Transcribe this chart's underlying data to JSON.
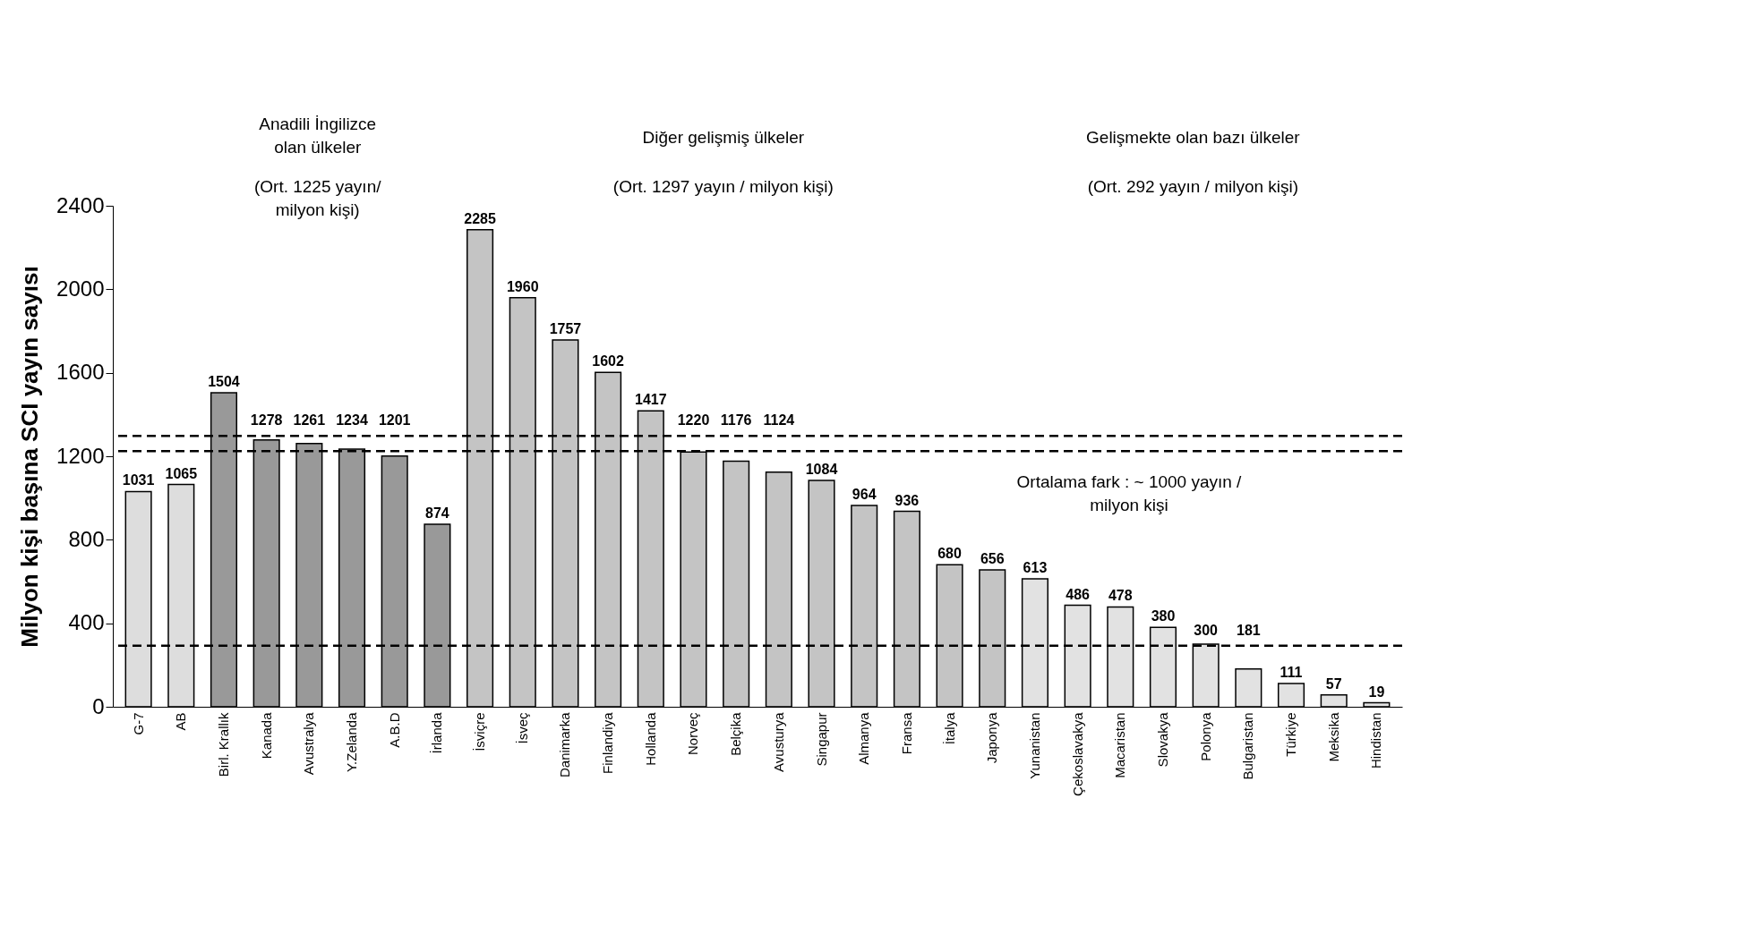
{
  "chart_data": {
    "type": "bar",
    "ylabel": "Milyon kişi başına SCI yayın sayısı",
    "categories": [
      "G-7",
      "AB",
      "Birl. Krallık",
      "Kanada",
      "Avustralya",
      "Y.Zelanda",
      "A.B.D",
      "İrlanda",
      "İsviçre",
      "İsveç",
      "Danimarka",
      "Finlandiya",
      "Hollanda",
      "Norveç",
      "Belçika",
      "Avusturya",
      "Singapur",
      "Almanya",
      "Fransa",
      "İtalya",
      "Japonya",
      "Yunanistan",
      "Çekoslavakya",
      "Macaristan",
      "Slovakya",
      "Polonya",
      "Bulgaristan",
      "Türkiye",
      "Meksika",
      "Hindistan"
    ],
    "values": [
      1031,
      1065,
      1504,
      1278,
      1261,
      1234,
      1201,
      874,
      2285,
      1960,
      1757,
      1602,
      1417,
      1220,
      1176,
      1124,
      1084,
      964,
      936,
      680,
      656,
      613,
      486,
      478,
      380,
      300,
      181,
      111,
      57,
      19
    ],
    "colors": [
      "#dddddd",
      "#dddddd",
      "#999999",
      "#999999",
      "#999999",
      "#999999",
      "#999999",
      "#999999",
      "#c4c4c4",
      "#c4c4c4",
      "#c4c4c4",
      "#c4c4c4",
      "#c4c4c4",
      "#c4c4c4",
      "#c4c4c4",
      "#c4c4c4",
      "#c4c4c4",
      "#c4c4c4",
      "#c4c4c4",
      "#c4c4c4",
      "#c4c4c4",
      "#e2e2e2",
      "#e2e2e2",
      "#e2e2e2",
      "#e2e2e2",
      "#e2e2e2",
      "#e2e2e2",
      "#e2e2e2",
      "#e2e2e2",
      "#e2e2e2"
    ],
    "ylim": [
      0,
      2400
    ],
    "yticks": [
      0,
      400,
      800,
      1200,
      1600,
      2000,
      2400
    ],
    "grid": false,
    "data_labels": true,
    "ref_lines": [
      {
        "axis": "y",
        "value": 1225,
        "line_style": "dashed"
      },
      {
        "axis": "y",
        "value": 1297,
        "line_style": "dashed"
      },
      {
        "axis": "y",
        "value": 292,
        "line_style": "dashed"
      }
    ],
    "annotations": [
      "Anadili İngilizce olan ülkeler",
      "(Ort. 1225 yayın/ milyon kişi)",
      "Diğer gelişmiş ülkeler",
      "(Ort. 1297 yayın / milyon kişi)",
      "Gelişmekte olan bazı ülkeler",
      "(Ort. 292 yayın / milyon kişi)",
      "Ortalama fark : ~ 1000 yayın / milyon kişi"
    ]
  }
}
